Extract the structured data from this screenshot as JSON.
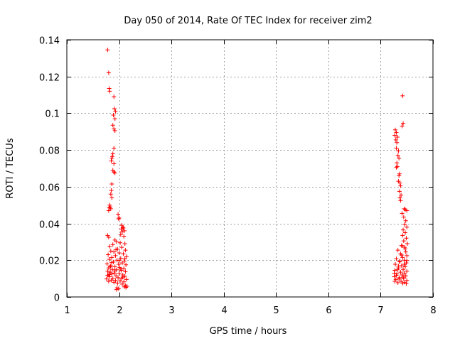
{
  "chart_data": {
    "type": "scatter",
    "title": "Day 050 of 2014, Rate Of TEC Index for receiver zim2",
    "xlabel": "GPS time / hours",
    "ylabel": "ROTI / TECUs",
    "xlim": [
      1,
      8
    ],
    "ylim": [
      0,
      0.14
    ],
    "x_ticks": [
      1,
      2,
      3,
      4,
      5,
      6,
      7,
      8
    ],
    "x_tick_labels": [
      "1",
      "2",
      "3",
      "4",
      "5",
      "6",
      "7",
      "8"
    ],
    "y_ticks": [
      0,
      0.02,
      0.04,
      0.06,
      0.08,
      0.1,
      0.12,
      0.14
    ],
    "y_tick_labels": [
      "0",
      "0.02",
      "0.04",
      "0.06",
      "0.08",
      "0.1",
      "0.12",
      "0.14"
    ],
    "grid": true,
    "marker": "+",
    "series": [
      {
        "name": "ROTI",
        "color": "#ff0000",
        "points": [
          [
            1.78,
            0.1345
          ],
          [
            1.8,
            0.122
          ],
          [
            1.81,
            0.1135
          ],
          [
            1.82,
            0.112
          ],
          [
            1.9,
            0.109
          ],
          [
            1.91,
            0.1025
          ],
          [
            1.93,
            0.101
          ],
          [
            1.89,
            0.099
          ],
          [
            1.92,
            0.097
          ],
          [
            1.88,
            0.0935
          ],
          [
            1.9,
            0.0915
          ],
          [
            1.92,
            0.0905
          ],
          [
            1.9,
            0.081
          ],
          [
            1.88,
            0.078
          ],
          [
            1.87,
            0.0765
          ],
          [
            1.86,
            0.0755
          ],
          [
            1.85,
            0.074
          ],
          [
            1.9,
            0.0725
          ],
          [
            1.88,
            0.069
          ],
          [
            1.9,
            0.068
          ],
          [
            1.92,
            0.0675
          ],
          [
            1.86,
            0.0615
          ],
          [
            1.85,
            0.058
          ],
          [
            1.84,
            0.056
          ],
          [
            1.86,
            0.054
          ],
          [
            1.82,
            0.05
          ],
          [
            1.83,
            0.049
          ],
          [
            1.81,
            0.0485
          ],
          [
            1.84,
            0.048
          ],
          [
            1.8,
            0.047
          ],
          [
            1.98,
            0.045
          ],
          [
            2.0,
            0.043
          ],
          [
            1.99,
            0.0425
          ],
          [
            2.05,
            0.039
          ],
          [
            2.07,
            0.038
          ],
          [
            2.08,
            0.0375
          ],
          [
            2.04,
            0.037
          ],
          [
            2.1,
            0.036
          ],
          [
            2.06,
            0.0355
          ],
          [
            2.03,
            0.034
          ],
          [
            2.09,
            0.033
          ],
          [
            1.78,
            0.0335
          ],
          [
            1.8,
            0.0325
          ],
          [
            1.92,
            0.031
          ],
          [
            1.95,
            0.03
          ],
          [
            2.02,
            0.0295
          ],
          [
            2.11,
            0.029
          ],
          [
            1.88,
            0.0285
          ],
          [
            1.82,
            0.0275
          ],
          [
            2.05,
            0.027
          ],
          [
            1.97,
            0.026
          ],
          [
            2.12,
            0.0255
          ],
          [
            1.84,
            0.025
          ],
          [
            1.9,
            0.0245
          ],
          [
            2.0,
            0.024
          ],
          [
            2.08,
            0.0235
          ],
          [
            1.79,
            0.023
          ],
          [
            1.93,
            0.0225
          ],
          [
            2.14,
            0.022
          ],
          [
            1.86,
            0.0215
          ],
          [
            2.03,
            0.021
          ],
          [
            1.81,
            0.0205
          ],
          [
            1.96,
            0.02
          ],
          [
            2.1,
            0.0195
          ],
          [
            1.89,
            0.019
          ],
          [
            2.06,
            0.0185
          ],
          [
            1.77,
            0.018
          ],
          [
            1.99,
            0.0178
          ],
          [
            2.13,
            0.0175
          ],
          [
            1.84,
            0.017
          ],
          [
            1.92,
            0.0165
          ],
          [
            2.01,
            0.016
          ],
          [
            1.8,
            0.0158
          ],
          [
            2.09,
            0.0155
          ],
          [
            1.87,
            0.015
          ],
          [
            1.95,
            0.0148
          ],
          [
            2.04,
            0.0145
          ],
          [
            1.78,
            0.014
          ],
          [
            2.12,
            0.0138
          ],
          [
            1.83,
            0.0135
          ],
          [
            1.91,
            0.013
          ],
          [
            2.0,
            0.0128
          ],
          [
            1.86,
            0.0125
          ],
          [
            2.07,
            0.012
          ],
          [
            1.79,
            0.0118
          ],
          [
            1.94,
            0.0115
          ],
          [
            2.11,
            0.0112
          ],
          [
            1.82,
            0.011
          ],
          [
            1.98,
            0.0105
          ],
          [
            2.05,
            0.0102
          ],
          [
            1.88,
            0.01
          ],
          [
            1.76,
            0.0098
          ],
          [
            2.14,
            0.0095
          ],
          [
            1.85,
            0.0092
          ],
          [
            1.93,
            0.009
          ],
          [
            2.02,
            0.0088
          ],
          [
            1.8,
            0.0085
          ],
          [
            2.09,
            0.0082
          ],
          [
            1.9,
            0.008
          ],
          [
            1.97,
            0.0075
          ],
          [
            2.06,
            0.007
          ],
          [
            2.12,
            0.0062
          ],
          [
            2.15,
            0.0058
          ],
          [
            2.1,
            0.0055
          ],
          [
            1.96,
            0.005
          ],
          [
            1.99,
            0.0045
          ],
          [
            1.95,
            0.004
          ],
          [
            2.13,
            0.0052
          ],
          [
            1.83,
            0.0165
          ],
          [
            2.0,
            0.0198
          ],
          [
            1.92,
            0.0142
          ],
          [
            2.07,
            0.0108
          ],
          [
            1.81,
            0.0122
          ],
          [
            1.86,
            0.0188
          ],
          [
            2.03,
            0.0152
          ],
          [
            1.94,
            0.0258
          ],
          [
            2.11,
            0.0208
          ],
          [
            1.78,
            0.0118
          ],
          [
            7.42,
            0.1095
          ],
          [
            7.43,
            0.0945
          ],
          [
            7.41,
            0.093
          ],
          [
            7.28,
            0.091
          ],
          [
            7.3,
            0.0895
          ],
          [
            7.27,
            0.088
          ],
          [
            7.32,
            0.087
          ],
          [
            7.29,
            0.0855
          ],
          [
            7.31,
            0.084
          ],
          [
            7.3,
            0.081
          ],
          [
            7.34,
            0.0795
          ],
          [
            7.33,
            0.077
          ],
          [
            7.35,
            0.0755
          ],
          [
            7.31,
            0.073
          ],
          [
            7.32,
            0.071
          ],
          [
            7.3,
            0.0705
          ],
          [
            7.36,
            0.067
          ],
          [
            7.35,
            0.066
          ],
          [
            7.34,
            0.063
          ],
          [
            7.37,
            0.062
          ],
          [
            7.38,
            0.0605
          ],
          [
            7.36,
            0.0575
          ],
          [
            7.39,
            0.0555
          ],
          [
            7.37,
            0.054
          ],
          [
            7.38,
            0.0525
          ],
          [
            7.45,
            0.048
          ],
          [
            7.47,
            0.0475
          ],
          [
            7.5,
            0.047
          ],
          [
            7.41,
            0.0455
          ],
          [
            7.44,
            0.0435
          ],
          [
            7.48,
            0.0415
          ],
          [
            7.46,
            0.0395
          ],
          [
            7.5,
            0.038
          ],
          [
            7.43,
            0.0365
          ],
          [
            7.47,
            0.035
          ],
          [
            7.42,
            0.0335
          ],
          [
            7.49,
            0.032
          ],
          [
            7.44,
            0.0305
          ],
          [
            7.51,
            0.029
          ],
          [
            7.4,
            0.028
          ],
          [
            7.46,
            0.027
          ],
          [
            7.33,
            0.0255
          ],
          [
            7.48,
            0.0245
          ],
          [
            7.38,
            0.0235
          ],
          [
            7.5,
            0.0225
          ],
          [
            7.42,
            0.0215
          ],
          [
            7.3,
            0.0208
          ],
          [
            7.45,
            0.02
          ],
          [
            7.36,
            0.0192
          ],
          [
            7.49,
            0.0185
          ],
          [
            7.28,
            0.0178
          ],
          [
            7.4,
            0.017
          ],
          [
            7.47,
            0.0165
          ],
          [
            7.34,
            0.0158
          ],
          [
            7.43,
            0.015
          ],
          [
            7.27,
            0.0145
          ],
          [
            7.5,
            0.014
          ],
          [
            7.38,
            0.0135
          ],
          [
            7.45,
            0.013
          ],
          [
            7.31,
            0.0125
          ],
          [
            7.41,
            0.012
          ],
          [
            7.48,
            0.0115
          ],
          [
            7.26,
            0.011
          ],
          [
            7.36,
            0.0105
          ],
          [
            7.44,
            0.01
          ],
          [
            7.29,
            0.0095
          ],
          [
            7.5,
            0.009
          ],
          [
            7.39,
            0.0085
          ],
          [
            7.46,
            0.008
          ],
          [
            7.33,
            0.0078
          ],
          [
            7.42,
            0.0075
          ],
          [
            7.27,
            0.0085
          ],
          [
            7.35,
            0.0098
          ],
          [
            7.49,
            0.0072
          ],
          [
            7.3,
            0.0118
          ],
          [
            7.45,
            0.0178
          ],
          [
            7.32,
            0.0148
          ],
          [
            7.4,
            0.0228
          ],
          [
            7.47,
            0.0262
          ],
          [
            7.37,
            0.0195
          ],
          [
            7.26,
            0.0128
          ],
          [
            7.43,
            0.0108
          ],
          [
            7.5,
            0.0198
          ],
          [
            7.34,
            0.0168
          ],
          [
            7.41,
            0.0278
          ]
        ]
      }
    ]
  }
}
